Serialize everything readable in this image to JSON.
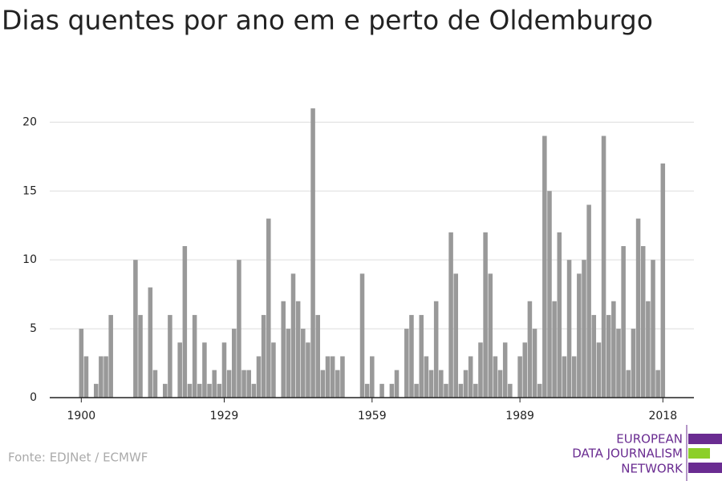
{
  "chart_data": {
    "type": "bar",
    "title": "Dias quentes por ano em e perto de Oldemburgo",
    "source": "Fonte: EDJNet / ECMWF",
    "logo": [
      "EUROPEAN",
      "DATA JOURNALISM",
      "NETWORK"
    ],
    "color": "#999999",
    "grid": true,
    "x": [
      1900,
      1901,
      1902,
      1903,
      1904,
      1905,
      1906,
      1907,
      1908,
      1909,
      1910,
      1911,
      1912,
      1913,
      1914,
      1915,
      1916,
      1917,
      1918,
      1919,
      1920,
      1921,
      1922,
      1923,
      1924,
      1925,
      1926,
      1927,
      1928,
      1929,
      1930,
      1931,
      1932,
      1933,
      1934,
      1935,
      1936,
      1937,
      1938,
      1939,
      1940,
      1941,
      1942,
      1943,
      1944,
      1945,
      1946,
      1947,
      1948,
      1949,
      1950,
      1951,
      1952,
      1953,
      1954,
      1955,
      1956,
      1957,
      1958,
      1959,
      1960,
      1961,
      1962,
      1963,
      1964,
      1965,
      1966,
      1967,
      1968,
      1969,
      1970,
      1971,
      1972,
      1973,
      1974,
      1975,
      1976,
      1977,
      1978,
      1979,
      1980,
      1981,
      1982,
      1983,
      1984,
      1985,
      1986,
      1987,
      1988,
      1989,
      1990,
      1991,
      1992,
      1993,
      1994,
      1995,
      1996,
      1997,
      1998,
      1999,
      2000,
      2001,
      2002,
      2003,
      2004,
      2005,
      2006,
      2007,
      2008,
      2009,
      2010,
      2011,
      2012,
      2013,
      2014,
      2015,
      2016,
      2017,
      2018
    ],
    "values": [
      5,
      3,
      0,
      1,
      3,
      3,
      6,
      0,
      0,
      0,
      0,
      10,
      6,
      0,
      8,
      2,
      0,
      1,
      6,
      0,
      4,
      11,
      1,
      6,
      1,
      4,
      1,
      2,
      1,
      4,
      2,
      5,
      10,
      2,
      2,
      1,
      3,
      6,
      13,
      4,
      0,
      7,
      5,
      9,
      7,
      5,
      4,
      21,
      6,
      2,
      3,
      3,
      2,
      3,
      0,
      0,
      0,
      9,
      1,
      3,
      0,
      1,
      0,
      1,
      2,
      0,
      5,
      6,
      1,
      6,
      3,
      2,
      7,
      2,
      1,
      12,
      9,
      1,
      2,
      3,
      1,
      4,
      12,
      9,
      3,
      2,
      4,
      1,
      0,
      3,
      4,
      7,
      5,
      1,
      19,
      15,
      7,
      12,
      3,
      10,
      3,
      9,
      10,
      14,
      6,
      4,
      19,
      6,
      7,
      5,
      11,
      2,
      5,
      13,
      11,
      7,
      10,
      2,
      17
    ],
    "xlim": [
      1893.6,
      2024.3
    ],
    "xticks": [
      1900,
      1929,
      1959,
      1989,
      2018
    ],
    "ylim": [
      0,
      22
    ],
    "yticks": [
      0,
      5,
      10,
      15,
      20
    ]
  }
}
